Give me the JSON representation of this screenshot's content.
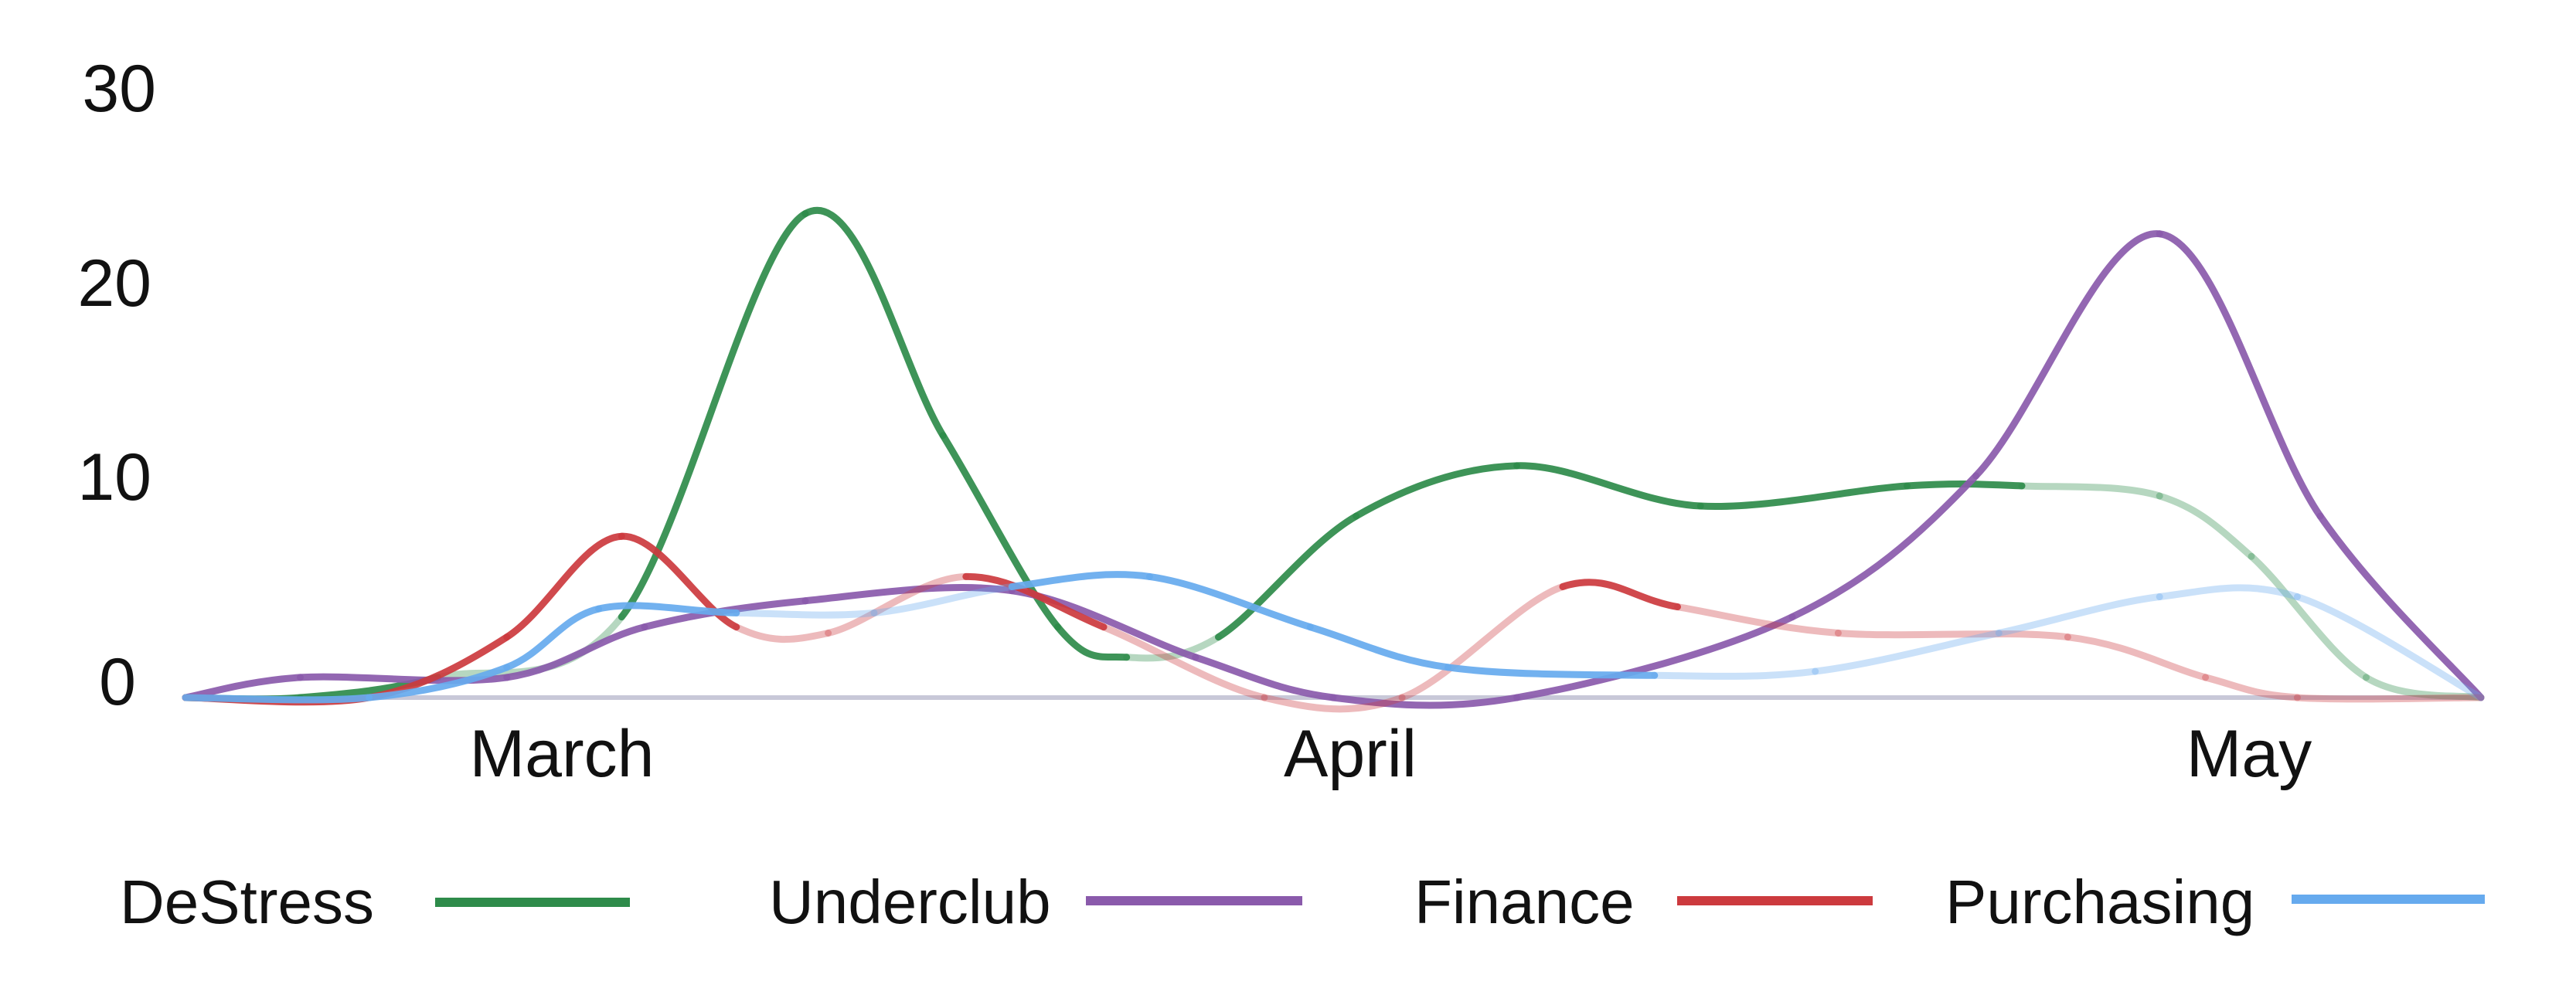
{
  "chart_data": {
    "type": "line",
    "title": "",
    "xlabel": "",
    "ylabel": "",
    "ylim": [
      0,
      30
    ],
    "yticks": [
      "0",
      "10",
      "20",
      "30"
    ],
    "xticks": [
      "March",
      "April",
      "May"
    ],
    "grid": false,
    "legend_position": "bottom",
    "series": [
      {
        "name": "DeStress",
        "color": "#2e8b4a",
        "x": [
          0.0,
          0.05,
          0.11,
          0.19,
          0.27,
          0.33,
          0.38,
          0.41,
          0.45,
          0.51,
          0.58,
          0.66,
          0.75,
          0.8,
          0.86,
          0.9,
          0.95,
          1.0
        ],
        "y": [
          0,
          0,
          1,
          4,
          24,
          13,
          3.5,
          2,
          3,
          9,
          11.5,
          9.5,
          10.5,
          10.5,
          10,
          7,
          1,
          0
        ],
        "faded": [
          false,
          false,
          true,
          false,
          false,
          false,
          false,
          true,
          false,
          false,
          false,
          false,
          false,
          true,
          true,
          true,
          true,
          true
        ]
      },
      {
        "name": "Underclub",
        "color": "#8a5aab",
        "x": [
          0.0,
          0.05,
          0.14,
          0.2,
          0.27,
          0.36,
          0.44,
          0.5,
          0.58,
          0.7,
          0.78,
          0.86,
          0.93,
          1.0
        ],
        "y": [
          0,
          1,
          1,
          3.5,
          4.8,
          5.3,
          2,
          0,
          0,
          4,
          11,
          23,
          9,
          0
        ],
        "faded": [
          false,
          false,
          false,
          false,
          false,
          false,
          false,
          false,
          false,
          false,
          false,
          false,
          false,
          false
        ]
      },
      {
        "name": "Finance",
        "color": "#cc3a3e",
        "x": [
          0.0,
          0.08,
          0.14,
          0.19,
          0.24,
          0.28,
          0.34,
          0.4,
          0.47,
          0.53,
          0.6,
          0.65,
          0.72,
          0.82,
          0.88,
          0.92,
          1.0
        ],
        "y": [
          0,
          0,
          3,
          8,
          3.5,
          3.2,
          6,
          3.5,
          0,
          0,
          5.5,
          4.5,
          3.2,
          3,
          1,
          0,
          0
        ],
        "faded": [
          false,
          false,
          false,
          false,
          true,
          true,
          false,
          true,
          true,
          true,
          false,
          true,
          true,
          true,
          true,
          true,
          true
        ]
      },
      {
        "name": "Purchasing",
        "color": "#66aaee",
        "x": [
          0.0,
          0.08,
          0.14,
          0.18,
          0.24,
          0.3,
          0.36,
          0.42,
          0.49,
          0.55,
          0.64,
          0.71,
          0.79,
          0.86,
          0.92,
          1.0
        ],
        "y": [
          0,
          0,
          1.5,
          4.4,
          4.2,
          4.2,
          5.5,
          6,
          3.5,
          1.5,
          1.1,
          1.3,
          3.2,
          5,
          5,
          0
        ],
        "faded": [
          false,
          false,
          false,
          false,
          true,
          true,
          false,
          false,
          false,
          false,
          true,
          true,
          true,
          true,
          true,
          true
        ]
      }
    ]
  }
}
